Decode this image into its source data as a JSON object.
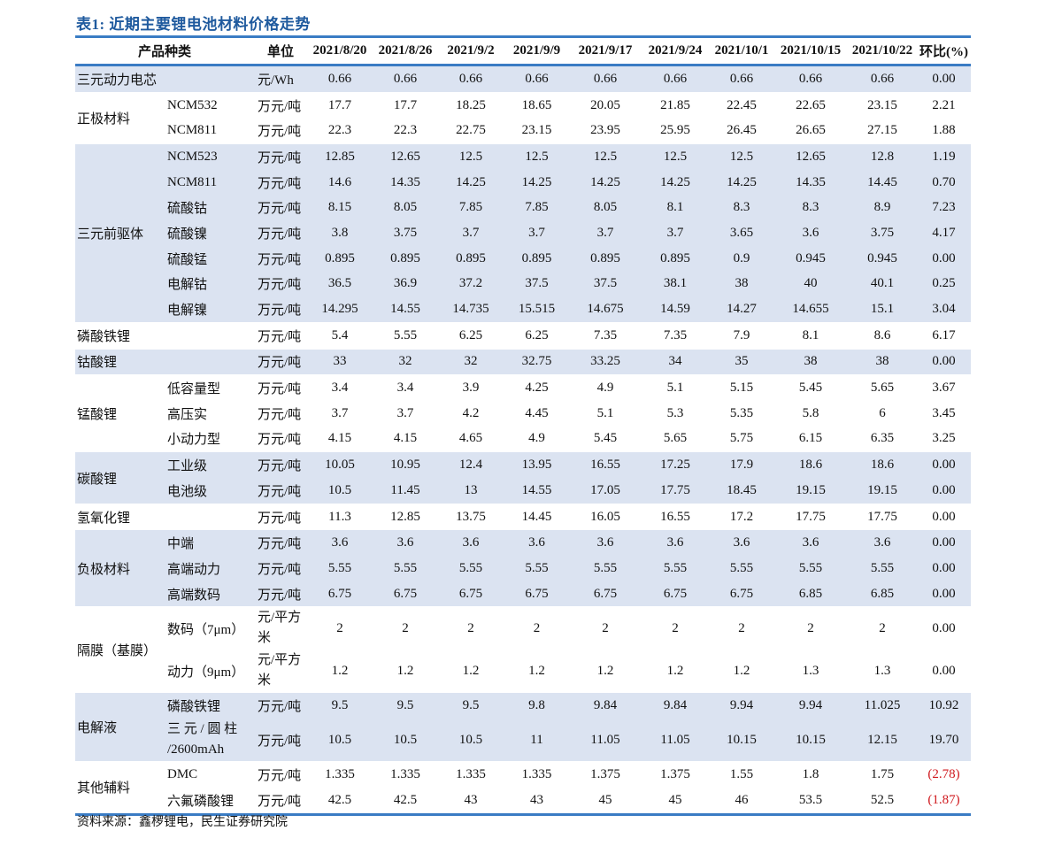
{
  "title": "表1: 近期主要锂电池材料价格走势",
  "header": {
    "product": "产品种类",
    "unit": "单位",
    "dates": [
      "2021/8/20",
      "2021/8/26",
      "2021/9/2",
      "2021/9/9",
      "2021/9/17",
      "2021/9/24",
      "2021/10/1",
      "2021/10/15",
      "2021/10/22"
    ],
    "change": "环比(%)"
  },
  "groups": [
    {
      "name": "三元动力电芯",
      "shade": true,
      "rows": [
        {
          "sub": "",
          "unit": "元/Wh",
          "values": [
            "0.66",
            "0.66",
            "0.66",
            "0.66",
            "0.66",
            "0.66",
            "0.66",
            "0.66",
            "0.66"
          ],
          "change": "0.00"
        }
      ]
    },
    {
      "name": "正极材料",
      "shade": false,
      "rows": [
        {
          "sub": "NCM532",
          "unit": "万元/吨",
          "values": [
            "17.7",
            "17.7",
            "18.25",
            "18.65",
            "20.05",
            "21.85",
            "22.45",
            "22.65",
            "23.15"
          ],
          "change": "2.21"
        },
        {
          "sub": "NCM811",
          "unit": "万元/吨",
          "values": [
            "22.3",
            "22.3",
            "22.75",
            "23.15",
            "23.95",
            "25.95",
            "26.45",
            "26.65",
            "27.15"
          ],
          "change": "1.88"
        }
      ]
    },
    {
      "name": "三元前驱体",
      "shade": true,
      "rows": [
        {
          "sub": "NCM523",
          "unit": "万元/吨",
          "values": [
            "12.85",
            "12.65",
            "12.5",
            "12.5",
            "12.5",
            "12.5",
            "12.5",
            "12.65",
            "12.8"
          ],
          "change": "1.19"
        },
        {
          "sub": "NCM811",
          "unit": "万元/吨",
          "values": [
            "14.6",
            "14.35",
            "14.25",
            "14.25",
            "14.25",
            "14.25",
            "14.25",
            "14.35",
            "14.45"
          ],
          "change": "0.70"
        },
        {
          "sub": "硫酸钴",
          "unit": "万元/吨",
          "values": [
            "8.15",
            "8.05",
            "7.85",
            "7.85",
            "8.05",
            "8.1",
            "8.3",
            "8.3",
            "8.9"
          ],
          "change": "7.23"
        },
        {
          "sub": "硫酸镍",
          "unit": "万元/吨",
          "values": [
            "3.8",
            "3.75",
            "3.7",
            "3.7",
            "3.7",
            "3.7",
            "3.65",
            "3.6",
            "3.75"
          ],
          "change": "4.17"
        },
        {
          "sub": "硫酸锰",
          "unit": "万元/吨",
          "values": [
            "0.895",
            "0.895",
            "0.895",
            "0.895",
            "0.895",
            "0.895",
            "0.9",
            "0.945",
            "0.945"
          ],
          "change": "0.00"
        },
        {
          "sub": "电解钴",
          "unit": "万元/吨",
          "values": [
            "36.5",
            "36.9",
            "37.2",
            "37.5",
            "37.5",
            "38.1",
            "38",
            "40",
            "40.1"
          ],
          "change": "0.25"
        },
        {
          "sub": "电解镍",
          "unit": "万元/吨",
          "values": [
            "14.295",
            "14.55",
            "14.735",
            "15.515",
            "14.675",
            "14.59",
            "14.27",
            "14.655",
            "15.1"
          ],
          "change": "3.04"
        }
      ]
    },
    {
      "name": "磷酸铁锂",
      "shade": false,
      "rows": [
        {
          "sub": "",
          "unit": "万元/吨",
          "values": [
            "5.4",
            "5.55",
            "6.25",
            "6.25",
            "7.35",
            "7.35",
            "7.9",
            "8.1",
            "8.6"
          ],
          "change": "6.17"
        }
      ]
    },
    {
      "name": "钴酸锂",
      "shade": true,
      "rows": [
        {
          "sub": "",
          "unit": "万元/吨",
          "values": [
            "33",
            "32",
            "32",
            "32.75",
            "33.25",
            "34",
            "35",
            "38",
            "38"
          ],
          "change": "0.00"
        }
      ]
    },
    {
      "name": "锰酸锂",
      "shade": false,
      "rows": [
        {
          "sub": "低容量型",
          "unit": "万元/吨",
          "values": [
            "3.4",
            "3.4",
            "3.9",
            "4.25",
            "4.9",
            "5.1",
            "5.15",
            "5.45",
            "5.65"
          ],
          "change": "3.67"
        },
        {
          "sub": "高压实",
          "unit": "万元/吨",
          "values": [
            "3.7",
            "3.7",
            "4.2",
            "4.45",
            "5.1",
            "5.3",
            "5.35",
            "5.8",
            "6"
          ],
          "change": "3.45"
        },
        {
          "sub": "小动力型",
          "unit": "万元/吨",
          "values": [
            "4.15",
            "4.15",
            "4.65",
            "4.9",
            "5.45",
            "5.65",
            "5.75",
            "6.15",
            "6.35"
          ],
          "change": "3.25"
        }
      ]
    },
    {
      "name": "碳酸锂",
      "shade": true,
      "rows": [
        {
          "sub": "工业级",
          "unit": "万元/吨",
          "values": [
            "10.05",
            "10.95",
            "12.4",
            "13.95",
            "16.55",
            "17.25",
            "17.9",
            "18.6",
            "18.6"
          ],
          "change": "0.00"
        },
        {
          "sub": "电池级",
          "unit": "万元/吨",
          "values": [
            "10.5",
            "11.45",
            "13",
            "14.55",
            "17.05",
            "17.75",
            "18.45",
            "19.15",
            "19.15"
          ],
          "change": "0.00"
        }
      ]
    },
    {
      "name": "氢氧化锂",
      "shade": false,
      "rows": [
        {
          "sub": "",
          "unit": "万元/吨",
          "values": [
            "11.3",
            "12.85",
            "13.75",
            "14.45",
            "16.05",
            "16.55",
            "17.2",
            "17.75",
            "17.75"
          ],
          "change": "0.00"
        }
      ]
    },
    {
      "name": "负极材料",
      "shade": true,
      "rows": [
        {
          "sub": "中端",
          "unit": "万元/吨",
          "values": [
            "3.6",
            "3.6",
            "3.6",
            "3.6",
            "3.6",
            "3.6",
            "3.6",
            "3.6",
            "3.6"
          ],
          "change": "0.00"
        },
        {
          "sub": "高端动力",
          "unit": "万元/吨",
          "values": [
            "5.55",
            "5.55",
            "5.55",
            "5.55",
            "5.55",
            "5.55",
            "5.55",
            "5.55",
            "5.55"
          ],
          "change": "0.00"
        },
        {
          "sub": "高端数码",
          "unit": "万元/吨",
          "values": [
            "6.75",
            "6.75",
            "6.75",
            "6.75",
            "6.75",
            "6.75",
            "6.75",
            "6.85",
            "6.85"
          ],
          "change": "0.00"
        }
      ]
    },
    {
      "name": "隔膜（基膜）",
      "shade": false,
      "rows": [
        {
          "sub": "数码（7μm）",
          "unit": "元/平方米",
          "tall": true,
          "values": [
            "2",
            "2",
            "2",
            "2",
            "2",
            "2",
            "2",
            "2",
            "2"
          ],
          "change": "0.00"
        },
        {
          "sub": "动力（9μm）",
          "unit": "元/平方米",
          "tall": true,
          "values": [
            "1.2",
            "1.2",
            "1.2",
            "1.2",
            "1.2",
            "1.2",
            "1.2",
            "1.3",
            "1.3"
          ],
          "change": "0.00"
        }
      ]
    },
    {
      "name": "电解液",
      "shade": true,
      "rows": [
        {
          "sub": "磷酸铁锂",
          "unit": "万元/吨",
          "values": [
            "9.5",
            "9.5",
            "9.5",
            "9.8",
            "9.84",
            "9.84",
            "9.94",
            "9.94",
            "11.025"
          ],
          "change": "10.92"
        },
        {
          "sub": "三 元 / 圆 柱 /2600mAh",
          "unit": "万元/吨",
          "tall": true,
          "values": [
            "10.5",
            "10.5",
            "10.5",
            "11",
            "11.05",
            "11.05",
            "10.15",
            "10.15",
            "12.15"
          ],
          "change": "19.70"
        }
      ]
    },
    {
      "name": "其他辅料",
      "shade": false,
      "rows": [
        {
          "sub": "DMC",
          "unit": "万元/吨",
          "values": [
            "1.335",
            "1.335",
            "1.335",
            "1.335",
            "1.375",
            "1.375",
            "1.55",
            "1.8",
            "1.75"
          ],
          "change": "(2.78)"
        },
        {
          "sub": "六氟磷酸锂",
          "unit": "万元/吨",
          "values": [
            "42.5",
            "42.5",
            "43",
            "43",
            "45",
            "45",
            "46",
            "53.5",
            "52.5"
          ],
          "change": "(1.87)"
        }
      ]
    }
  ],
  "colors": {
    "accent": "#3a7cc4",
    "title": "#1f5a9e",
    "shade": "#dbe3f1",
    "negative": "#d0191e"
  },
  "source": "资料来源：鑫椤锂电，民生证券研究院"
}
